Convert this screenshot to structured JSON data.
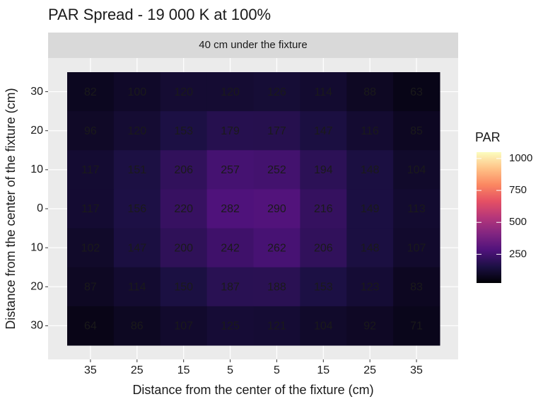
{
  "chart_data": {
    "type": "heatmap",
    "title": "PAR Spread - 19 000 K at 100%",
    "facet_label": "40 cm under the fixture",
    "x_label": "Distance from the center of the fixture (cm)",
    "y_label": "Distance from the center of the fixture (cm)",
    "categories": [
      "35",
      "25",
      "15",
      "5",
      "5",
      "15",
      "25",
      "35"
    ],
    "y_categories": [
      "30",
      "20",
      "10",
      "0",
      "10",
      "20",
      "30"
    ],
    "values": [
      [
        82,
        100,
        120,
        120,
        126,
        114,
        88,
        63
      ],
      [
        96,
        120,
        153,
        179,
        177,
        147,
        116,
        85
      ],
      [
        117,
        151,
        206,
        257,
        252,
        194,
        148,
        104
      ],
      [
        117,
        156,
        220,
        282,
        290,
        216,
        149,
        113
      ],
      [
        102,
        147,
        200,
        242,
        262,
        206,
        148,
        107
      ],
      [
        87,
        114,
        150,
        187,
        188,
        153,
        123,
        83
      ],
      [
        64,
        86,
        107,
        125,
        121,
        104,
        92,
        71
      ]
    ],
    "label_color": "#3a3ad6",
    "colormap": "magma",
    "legend_title": "PAR",
    "clim": [
      25,
      1050
    ],
    "cticks": [
      250,
      500,
      750,
      1000
    ]
  }
}
